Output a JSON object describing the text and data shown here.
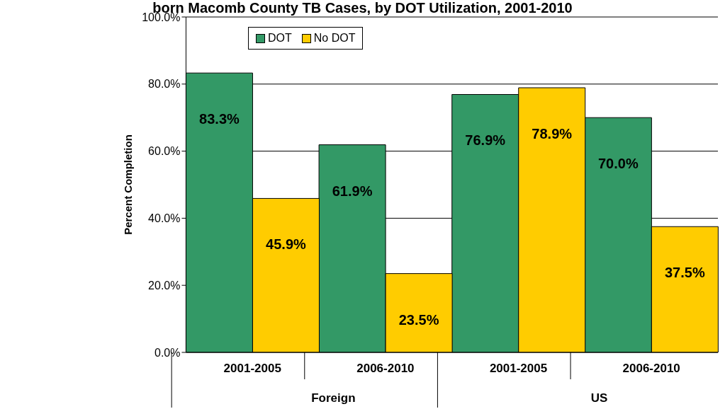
{
  "chart_data": {
    "type": "bar",
    "title": "born Macomb County TB Cases, by DOT Utilization, 2001-2010",
    "ylabel": "Percent Completion",
    "categories": [
      "2001-2005",
      "2006-2010",
      "2001-2005",
      "2006-2010"
    ],
    "annotations": [
      "Foreign",
      "US"
    ],
    "series": [
      {
        "name": "DOT",
        "color": "#339966",
        "values": [
          83.3,
          61.9,
          76.9,
          70.0
        ],
        "value_labels": [
          "83.3%",
          "61.9%",
          "76.9%",
          "70.0%"
        ]
      },
      {
        "name": "No DOT",
        "color": "#ffcc00",
        "values": [
          45.9,
          23.5,
          78.9,
          37.5
        ],
        "value_labels": [
          "45.9%",
          "23.5%",
          "78.9%",
          "37.5%"
        ]
      }
    ],
    "ylim": [
      0,
      100
    ],
    "yticks": [
      {
        "value": 0,
        "label": "0.0%"
      },
      {
        "value": 20,
        "label": "20.0%"
      },
      {
        "value": 40,
        "label": "40.0%"
      },
      {
        "value": 60,
        "label": "60.0%"
      },
      {
        "value": 80,
        "label": "80.0%"
      },
      {
        "value": 100,
        "label": "100.0%"
      }
    ],
    "grid": "y",
    "legend": "top"
  }
}
